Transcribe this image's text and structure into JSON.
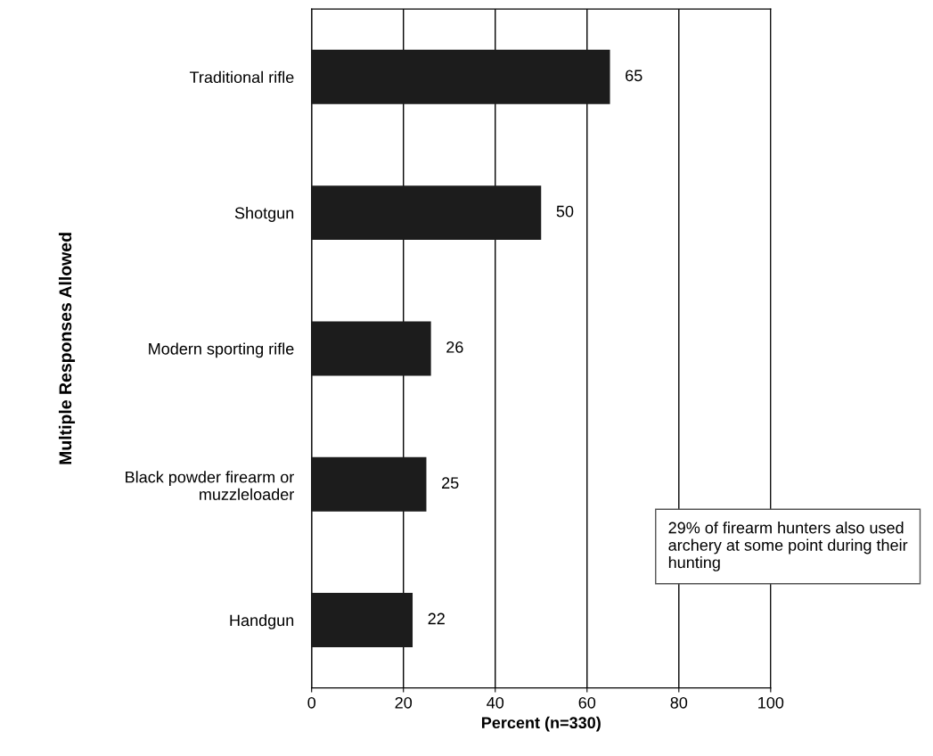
{
  "chart_data": {
    "type": "bar",
    "orientation": "horizontal",
    "categories": [
      "Traditional rifle",
      "Shotgun",
      "Modern sporting rifle",
      "Black powder firearm or\nmuzzleloader",
      "Handgun"
    ],
    "values": [
      65,
      50,
      26,
      25,
      22
    ],
    "color": "#1c1c1c",
    "data_labels": true,
    "xlim": [
      0,
      100
    ],
    "xticks": [
      0,
      20,
      40,
      60,
      80,
      100
    ],
    "grid": "x",
    "xlabel": "Percent (n=330)",
    "ylabel": "Multiple Responses Allowed",
    "annotations": [
      "29% of firearm hunters also used archery at some point during their hunting"
    ]
  }
}
